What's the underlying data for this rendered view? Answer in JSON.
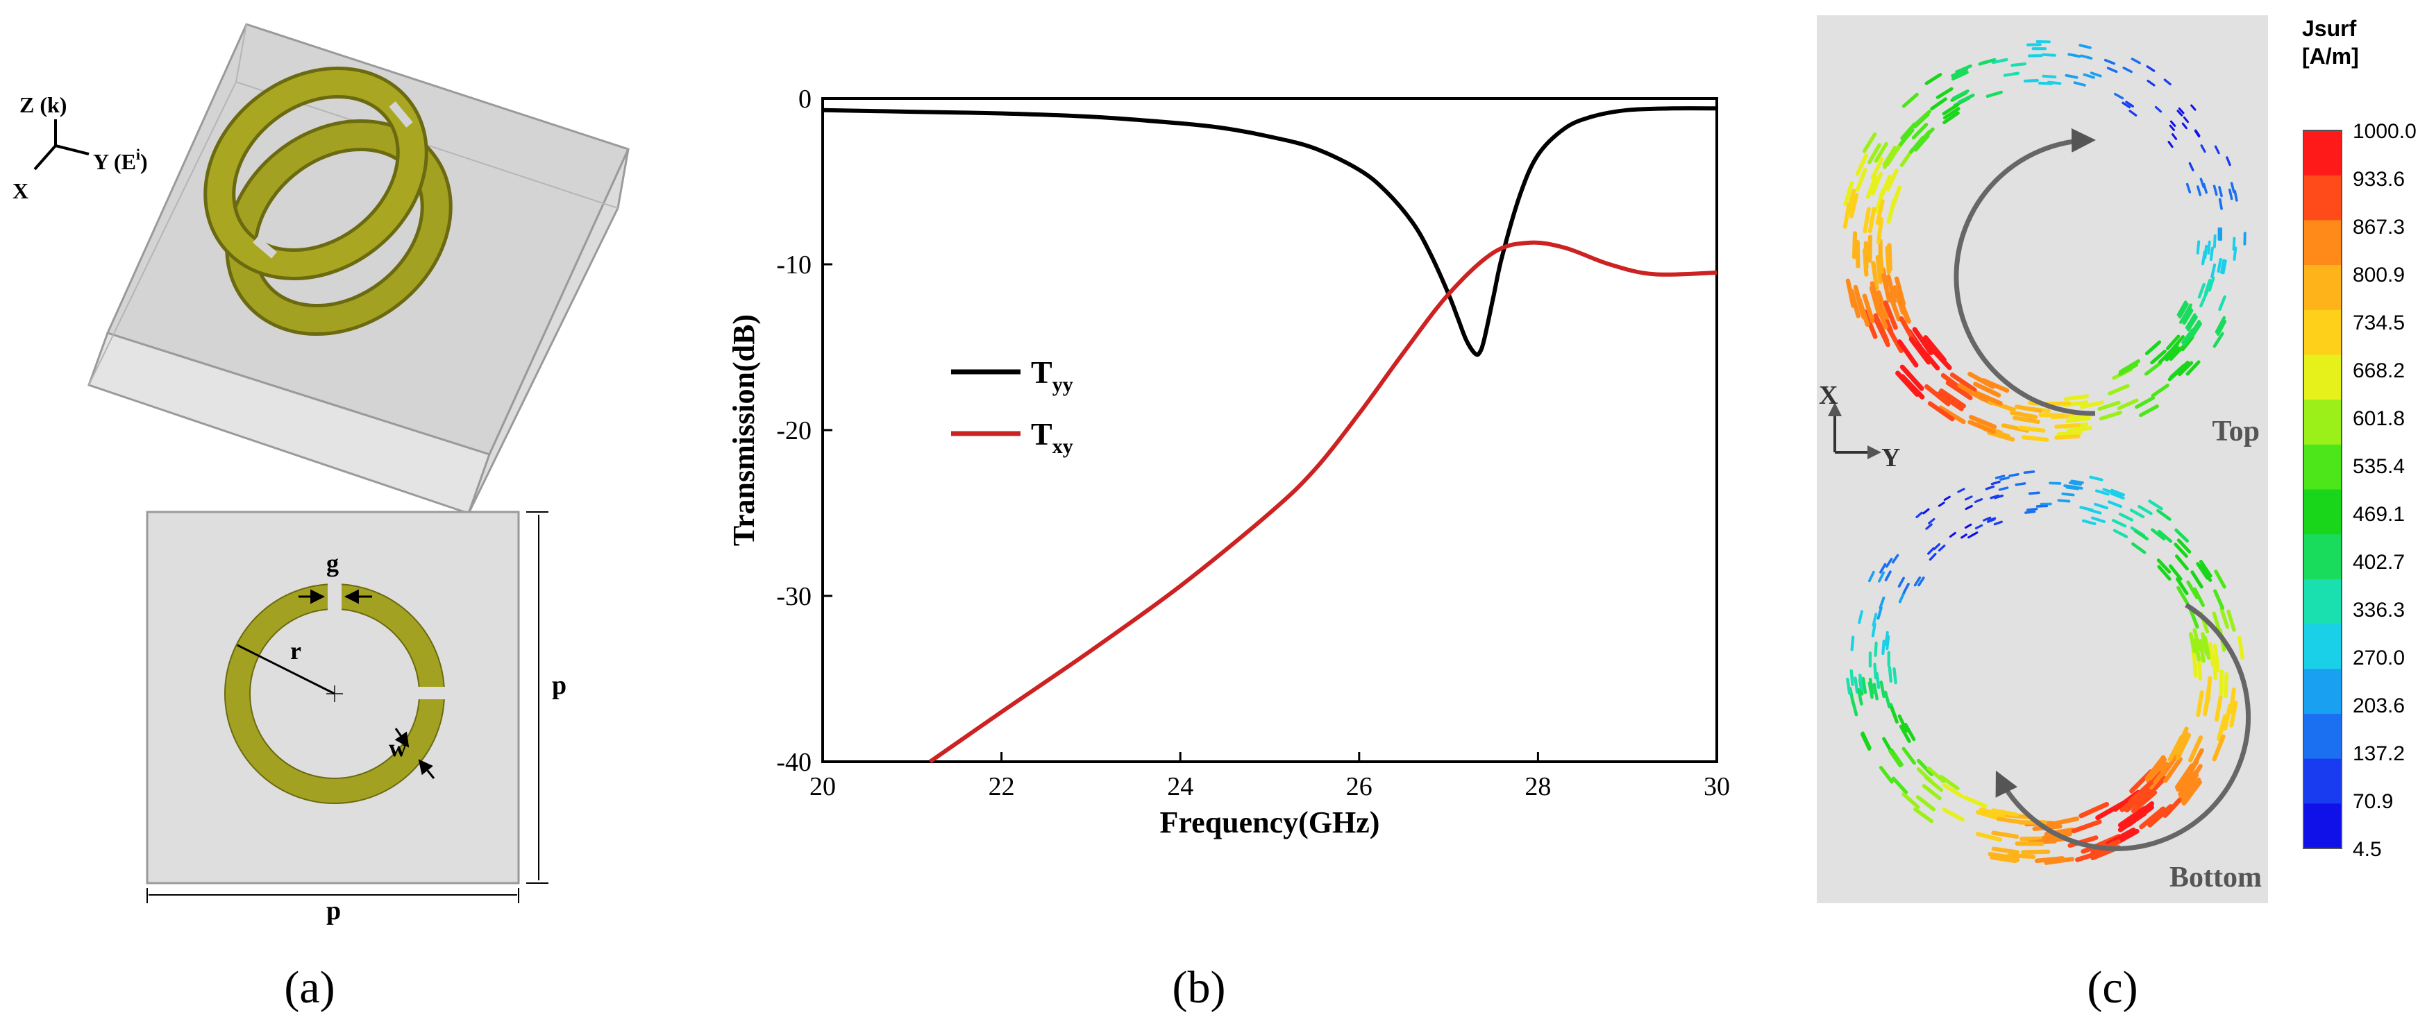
{
  "panel_a": {
    "axis_z": "Z (k)",
    "axis_y": "Y (E",
    "axis_y_sup": "i",
    "axis_y_close": ")",
    "axis_x": "X",
    "label_g": "g",
    "label_r": "r",
    "label_w": "w",
    "label_p_right": "p",
    "label_p_bottom": "p",
    "caption": "(a)",
    "colors": {
      "ring": "#9c9a21",
      "ring_edge": "#6b6a10",
      "substrate": "#dedede",
      "box_edge": "#9a9a9a"
    }
  },
  "panel_b": {
    "caption": "(b)",
    "chart_data": {
      "type": "line",
      "xlabel": "Frequency(GHz)",
      "ylabel": "Transmission(dB)",
      "xlim": [
        20,
        30
      ],
      "ylim": [
        -40,
        0
      ],
      "xticks": [
        20,
        22,
        24,
        26,
        28,
        30
      ],
      "yticks": [
        0,
        -10,
        -20,
        -30,
        -40
      ],
      "legend_position": "center-left",
      "series": [
        {
          "name": "T",
          "subscript": "yy",
          "color": "#000000",
          "x": [
            20,
            21,
            22,
            23,
            24,
            24.5,
            25,
            25.5,
            26,
            26.3,
            26.6,
            26.8,
            27.0,
            27.1,
            27.2,
            27.3,
            27.35,
            27.4,
            27.5,
            27.6,
            27.8,
            28.0,
            28.3,
            28.6,
            29.0,
            29.5,
            30
          ],
          "values": [
            -0.7,
            -0.8,
            -0.9,
            -1.1,
            -1.5,
            -1.8,
            -2.3,
            -3.0,
            -4.3,
            -5.6,
            -7.5,
            -9.4,
            -11.8,
            -13.2,
            -14.6,
            -15.4,
            -15.3,
            -14.5,
            -12.0,
            -9.5,
            -5.8,
            -3.4,
            -1.8,
            -1.1,
            -0.7,
            -0.6,
            -0.6
          ]
        },
        {
          "name": "T",
          "subscript": "xy",
          "color": "#cc2222",
          "x": [
            21.2,
            22,
            23,
            24,
            25,
            25.5,
            26,
            26.5,
            27.0,
            27.5,
            27.9,
            28.3,
            28.8,
            29.3,
            30
          ],
          "values": [
            -40.0,
            -37.0,
            -33.3,
            -29.4,
            -25.0,
            -22.4,
            -19.0,
            -15.3,
            -11.8,
            -9.3,
            -8.7,
            -9.0,
            -10.0,
            -10.6,
            -10.5
          ]
        }
      ]
    }
  },
  "panel_c": {
    "caption": "(c)",
    "colorbar_title": [
      "Jsurf",
      "[A/m]"
    ],
    "colorbar_ticks": [
      "1000.0",
      "933.6",
      "867.3",
      "800.9",
      "734.5",
      "668.2",
      "601.8",
      "535.4",
      "469.1",
      "402.7",
      "336.3",
      "270.0",
      "203.6",
      "137.2",
      "70.9",
      "4.5"
    ],
    "colorbar_colors": [
      "#ff1a1a",
      "#ff4a1a",
      "#ff8a1a",
      "#ffb31a",
      "#ffd01a",
      "#e6f01a",
      "#9cf01a",
      "#4ce61a",
      "#1ad61a",
      "#1adc5c",
      "#1ae0b0",
      "#1ad0e8",
      "#1aa0f0",
      "#1a70f0",
      "#1a3cf0",
      "#1010e8"
    ],
    "axis_x": "X",
    "axis_y": "Y",
    "label_top": "Top",
    "label_bottom": "Bottom"
  }
}
